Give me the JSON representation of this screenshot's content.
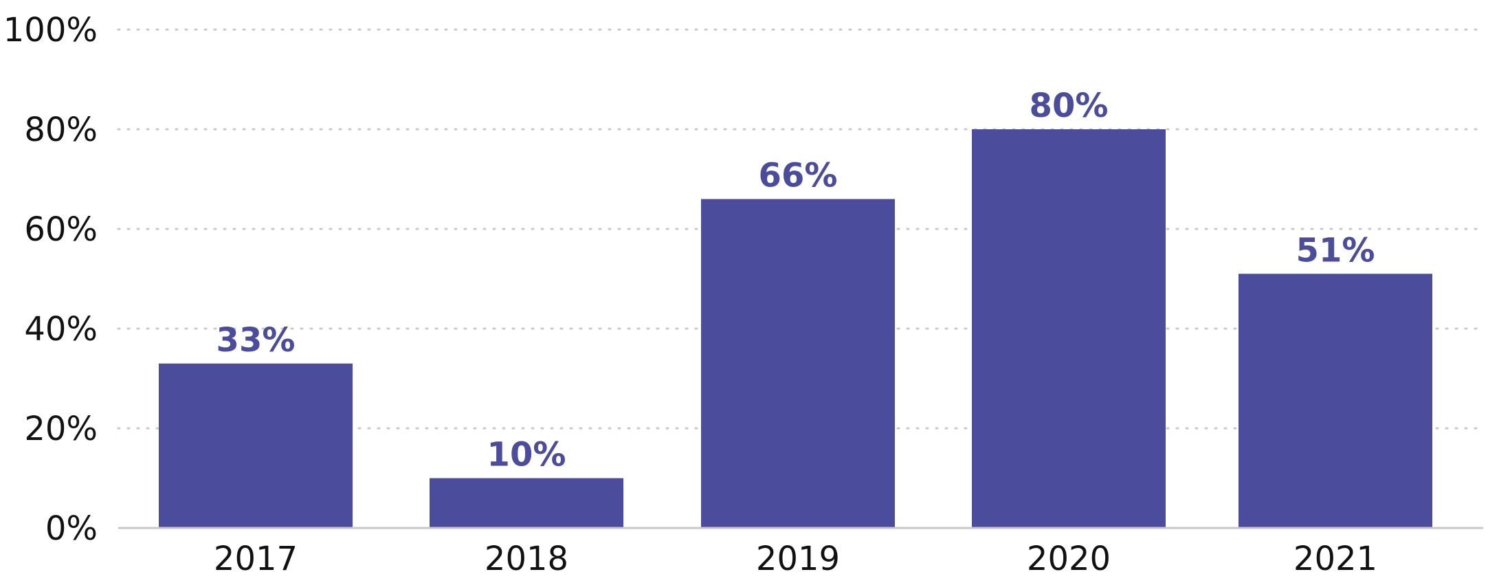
{
  "chart_data": {
    "type": "bar",
    "title": "",
    "xlabel": "",
    "ylabel": "",
    "categories": [
      "2017",
      "2018",
      "2019",
      "2020",
      "2021"
    ],
    "values": [
      33,
      10,
      66,
      80,
      51
    ],
    "data_labels": [
      "33%",
      "10%",
      "66%",
      "80%",
      "51%"
    ],
    "ylim": [
      0,
      100
    ],
    "y_ticks": [
      0,
      20,
      40,
      60,
      80,
      100
    ],
    "y_tick_labels": [
      "0%",
      "20%",
      "40%",
      "60%",
      "80%",
      "100%"
    ],
    "grid": true,
    "legend": "none",
    "colors": {
      "bar": "#4b4d9c",
      "data_label": "#4b4d9c"
    }
  }
}
